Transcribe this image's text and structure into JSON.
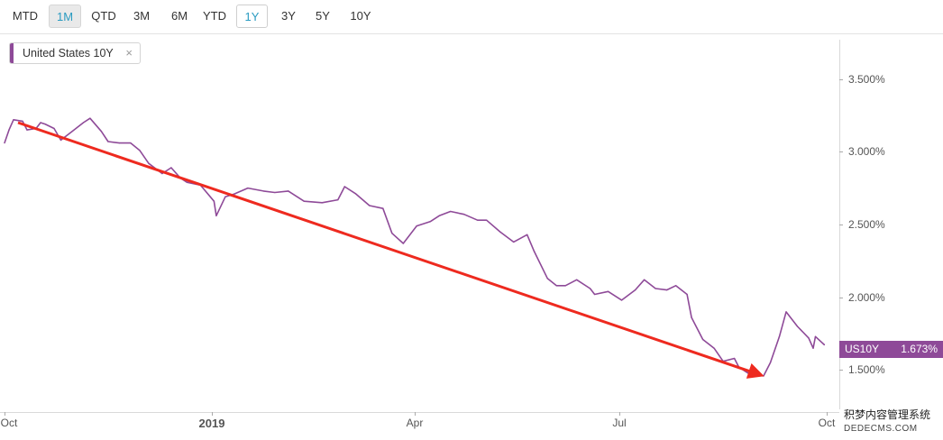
{
  "toolbar": {
    "ranges": [
      {
        "label": "MTD",
        "state": "normal"
      },
      {
        "label": "1M",
        "state": "grey-active"
      },
      {
        "label": "QTD",
        "state": "normal"
      },
      {
        "label": "3M",
        "state": "normal"
      },
      {
        "label": "6M",
        "state": "normal"
      },
      {
        "label": "YTD",
        "state": "normal"
      },
      {
        "label": "1Y",
        "state": "outline-active"
      },
      {
        "label": "3Y",
        "state": "normal"
      },
      {
        "label": "5Y",
        "state": "normal"
      },
      {
        "label": "10Y",
        "state": "normal"
      }
    ]
  },
  "legend": {
    "label": "United States 10Y",
    "close": "×"
  },
  "value_tag": {
    "symbol": "US10Y",
    "value": "1.673%"
  },
  "watermark": {
    "line1": "积梦内容管理系统",
    "line2": "DEDECMS.COM"
  },
  "colors": {
    "series": "#8e4a98",
    "arrow": "#ee2a1f",
    "accent": "#2a9bc1"
  },
  "chart_data": {
    "type": "line",
    "series": [
      {
        "name": "United States 10Y",
        "points": [
          [
            "2018-10-01",
            3.06
          ],
          [
            "2018-10-03",
            3.15
          ],
          [
            "2018-10-05",
            3.22
          ],
          [
            "2018-10-09",
            3.21
          ],
          [
            "2018-10-11",
            3.15
          ],
          [
            "2018-10-15",
            3.16
          ],
          [
            "2018-10-17",
            3.2
          ],
          [
            "2018-10-19",
            3.19
          ],
          [
            "2018-10-23",
            3.16
          ],
          [
            "2018-10-26",
            3.08
          ],
          [
            "2018-10-31",
            3.14
          ],
          [
            "2018-11-05",
            3.2
          ],
          [
            "2018-11-08",
            3.23
          ],
          [
            "2018-11-13",
            3.14
          ],
          [
            "2018-11-16",
            3.07
          ],
          [
            "2018-11-21",
            3.06
          ],
          [
            "2018-11-26",
            3.06
          ],
          [
            "2018-11-30",
            3.01
          ],
          [
            "2018-12-04",
            2.92
          ],
          [
            "2018-12-10",
            2.85
          ],
          [
            "2018-12-14",
            2.89
          ],
          [
            "2018-12-18",
            2.82
          ],
          [
            "2018-12-21",
            2.79
          ],
          [
            "2018-12-27",
            2.77
          ],
          [
            "2019-01-02",
            2.66
          ],
          [
            "2019-01-03",
            2.56
          ],
          [
            "2019-01-07",
            2.69
          ],
          [
            "2019-01-11",
            2.71
          ],
          [
            "2019-01-17",
            2.75
          ],
          [
            "2019-01-24",
            2.73
          ],
          [
            "2019-01-29",
            2.72
          ],
          [
            "2019-02-04",
            2.73
          ],
          [
            "2019-02-11",
            2.66
          ],
          [
            "2019-02-19",
            2.65
          ],
          [
            "2019-02-26",
            2.67
          ],
          [
            "2019-03-01",
            2.76
          ],
          [
            "2019-03-06",
            2.71
          ],
          [
            "2019-03-12",
            2.63
          ],
          [
            "2019-03-18",
            2.61
          ],
          [
            "2019-03-22",
            2.44
          ],
          [
            "2019-03-27",
            2.37
          ],
          [
            "2019-04-02",
            2.49
          ],
          [
            "2019-04-08",
            2.52
          ],
          [
            "2019-04-12",
            2.56
          ],
          [
            "2019-04-17",
            2.59
          ],
          [
            "2019-04-23",
            2.57
          ],
          [
            "2019-04-29",
            2.53
          ],
          [
            "2019-05-03",
            2.53
          ],
          [
            "2019-05-09",
            2.45
          ],
          [
            "2019-05-15",
            2.38
          ],
          [
            "2019-05-21",
            2.43
          ],
          [
            "2019-05-24",
            2.32
          ],
          [
            "2019-05-30",
            2.13
          ],
          [
            "2019-06-03",
            2.08
          ],
          [
            "2019-06-07",
            2.08
          ],
          [
            "2019-06-12",
            2.12
          ],
          [
            "2019-06-18",
            2.06
          ],
          [
            "2019-06-20",
            2.02
          ],
          [
            "2019-06-26",
            2.04
          ],
          [
            "2019-07-02",
            1.98
          ],
          [
            "2019-07-08",
            2.05
          ],
          [
            "2019-07-12",
            2.12
          ],
          [
            "2019-07-17",
            2.06
          ],
          [
            "2019-07-22",
            2.05
          ],
          [
            "2019-07-26",
            2.08
          ],
          [
            "2019-07-31",
            2.02
          ],
          [
            "2019-08-02",
            1.86
          ],
          [
            "2019-08-07",
            1.71
          ],
          [
            "2019-08-12",
            1.65
          ],
          [
            "2019-08-16",
            1.56
          ],
          [
            "2019-08-21",
            1.58
          ],
          [
            "2019-08-23",
            1.52
          ],
          [
            "2019-08-28",
            1.47
          ],
          [
            "2019-09-03",
            1.46
          ],
          [
            "2019-09-06",
            1.55
          ],
          [
            "2019-09-10",
            1.73
          ],
          [
            "2019-09-13",
            1.9
          ],
          [
            "2019-09-18",
            1.8
          ],
          [
            "2019-09-23",
            1.72
          ],
          [
            "2019-09-25",
            1.65
          ],
          [
            "2019-09-26",
            1.73
          ],
          [
            "2019-09-30",
            1.673
          ]
        ]
      }
    ],
    "x_ticks": [
      {
        "date": "2018-10-01",
        "label": "Oct",
        "bold": false
      },
      {
        "date": "2019-01-01",
        "label": "2019",
        "bold": true
      },
      {
        "date": "2019-04-01",
        "label": "Apr",
        "bold": false
      },
      {
        "date": "2019-07-01",
        "label": "Jul",
        "bold": false
      },
      {
        "date": "2019-10-01",
        "label": "Oct",
        "bold": false
      }
    ],
    "y_ticks": [
      {
        "value": 1.5,
        "label": "1.500%"
      },
      {
        "value": 2.0,
        "label": "2.000%"
      },
      {
        "value": 2.5,
        "label": "2.500%"
      },
      {
        "value": 3.0,
        "label": "3.000%"
      },
      {
        "value": 3.5,
        "label": "3.500%"
      }
    ],
    "xlim": [
      "2018-10-01",
      "2019-10-01"
    ],
    "ylim": [
      1.23,
      3.77
    ],
    "annotations": [
      {
        "type": "arrow",
        "from": [
          "2018-10-07",
          3.2
        ],
        "to": [
          "2019-09-01",
          1.47
        ],
        "color": "#ee2a1f"
      }
    ],
    "grid": false,
    "legend_position": "top-left"
  }
}
